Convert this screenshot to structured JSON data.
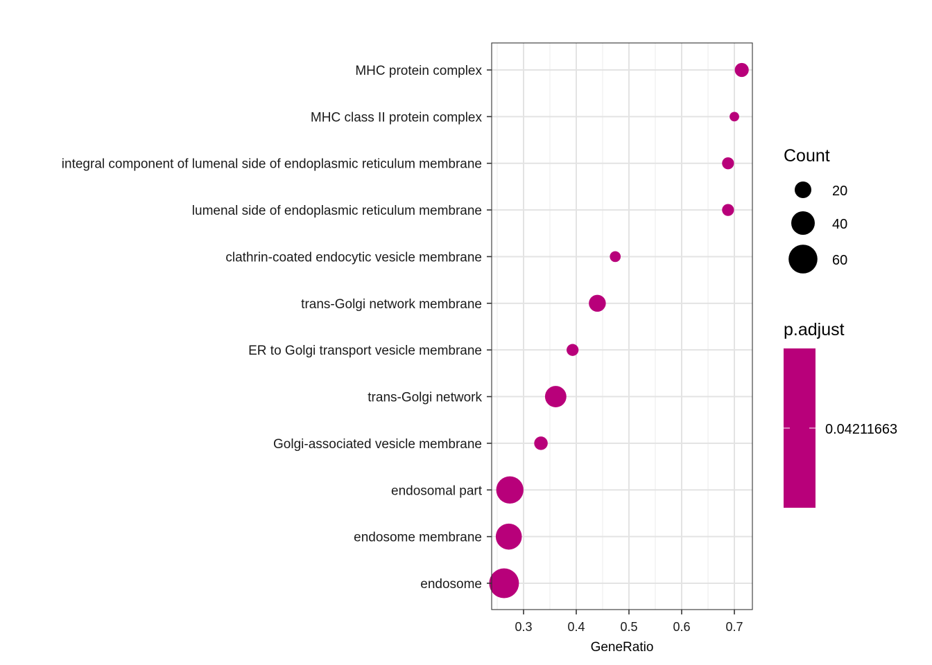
{
  "chart_data": {
    "type": "scatter",
    "xlabel": "GeneRatio",
    "ylabel": "",
    "xlim": [
      0.24,
      0.73
    ],
    "x_ticks": [
      0.3,
      0.4,
      0.5,
      0.6,
      0.7
    ],
    "grid": true,
    "legend_position": "right",
    "point_color": "#b8007a",
    "categories": [
      "MHC protein complex",
      "MHC class II protein complex",
      "integral component of lumenal side of endoplasmic reticulum membrane",
      "lumenal side of endoplasmic reticulum membrane",
      "clathrin-coated endocytic vesicle membrane",
      "trans-Golgi network membrane",
      "ER to Golgi transport vesicle membrane",
      "trans-Golgi network",
      "Golgi-associated vesicle membrane",
      "endosomal part",
      "endosome membrane",
      "endosome"
    ],
    "points": [
      {
        "term": "MHC protein complex",
        "gene_ratio": 0.714,
        "count": 15
      },
      {
        "term": "MHC class II protein complex",
        "gene_ratio": 0.7,
        "count": 7
      },
      {
        "term": "integral component of lumenal side of endoplasmic reticulum membrane",
        "gene_ratio": 0.688,
        "count": 11
      },
      {
        "term": "lumenal side of endoplasmic reticulum membrane",
        "gene_ratio": 0.688,
        "count": 11
      },
      {
        "term": "clathrin-coated endocytic vesicle membrane",
        "gene_ratio": 0.474,
        "count": 9
      },
      {
        "term": "trans-Golgi network membrane",
        "gene_ratio": 0.44,
        "count": 22
      },
      {
        "term": "ER to Golgi transport vesicle membrane",
        "gene_ratio": 0.393,
        "count": 11
      },
      {
        "term": "trans-Golgi network",
        "gene_ratio": 0.361,
        "count": 35
      },
      {
        "term": "Golgi-associated vesicle membrane",
        "gene_ratio": 0.333,
        "count": 14
      },
      {
        "term": "endosomal part",
        "gene_ratio": 0.274,
        "count": 57
      },
      {
        "term": "endosome membrane",
        "gene_ratio": 0.272,
        "count": 52
      },
      {
        "term": "endosome",
        "gene_ratio": 0.263,
        "count": 68
      }
    ],
    "size_legend": {
      "title": "Count",
      "values": [
        20,
        40,
        60
      ],
      "labels": [
        "20",
        "40",
        "60"
      ]
    },
    "color_legend": {
      "title": "p.adjust",
      "label": "0.04211663",
      "color": "#b8007a"
    }
  }
}
